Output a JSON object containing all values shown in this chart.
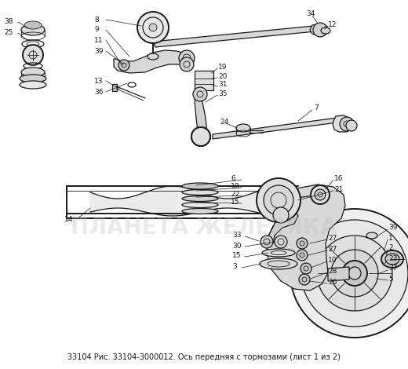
{
  "title": "33104 Рис. 33104-3000012. Ось передняя с тормозами (лист 1 из 2)",
  "watermark": "ПЛАНЕТА ЖЕЛЕЗЯКА",
  "bg_color": "#ffffff",
  "lc": "#1a1a1a",
  "wm_color": "#bbbbbb",
  "fig_width": 5.2,
  "fig_height": 4.7,
  "dpi": 100
}
